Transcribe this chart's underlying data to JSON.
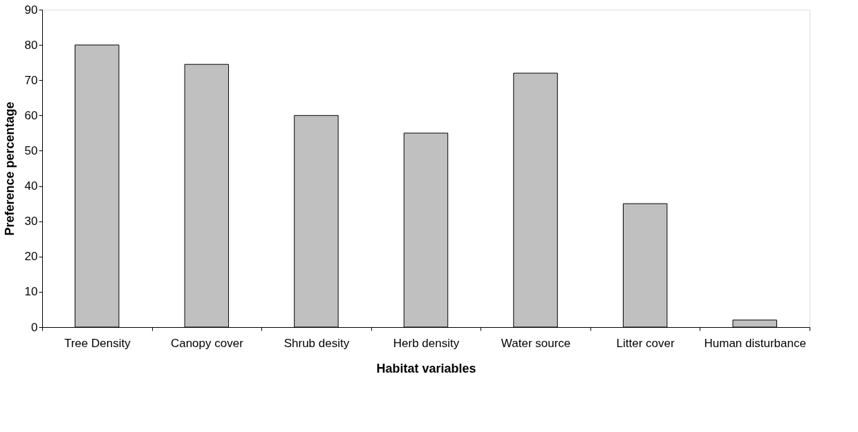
{
  "chart_data": {
    "type": "bar",
    "xlabel": "Habitat variables",
    "ylabel": "Preference percentage",
    "categories": [
      "Tree Density",
      "Canopy cover",
      "Shrub desity",
      "Herb density",
      "Water source",
      "Litter cover",
      "Human disturbance"
    ],
    "values": [
      80,
      74.5,
      60,
      55,
      72,
      35,
      2
    ],
    "color": "#c0c0c0",
    "ylim": [
      0,
      90
    ],
    "yticks": [
      0,
      10,
      20,
      30,
      40,
      50,
      60,
      70,
      80,
      90
    ],
    "grid": false
  }
}
